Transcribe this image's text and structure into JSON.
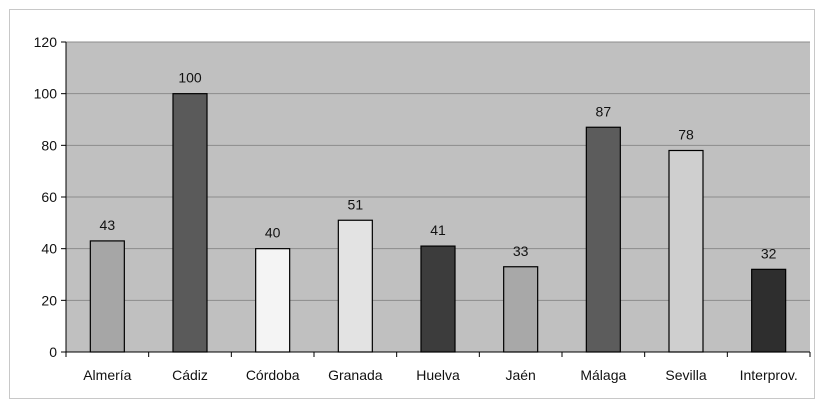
{
  "chart_data": {
    "type": "bar",
    "categories": [
      "Almería",
      "Cádiz",
      "Córdoba",
      "Granada",
      "Huelva",
      "Jaén",
      "Málaga",
      "Sevilla",
      "Interprov."
    ],
    "values": [
      43,
      100,
      40,
      51,
      41,
      33,
      87,
      78,
      32
    ],
    "bar_colors": [
      "#a6a6a6",
      "#5a5a5a",
      "#f4f4f4",
      "#e3e3e3",
      "#3c3c3c",
      "#a8a8a8",
      "#5c5c5c",
      "#cfcfcf",
      "#2e2e2e"
    ],
    "title": "",
    "xlabel": "",
    "ylabel": "",
    "ylim": [
      0,
      120
    ],
    "yticks": [
      0,
      20,
      40,
      60,
      80,
      100,
      120
    ],
    "grid": true,
    "plot_background": "#c0c0c0",
    "grid_color": "#8c8c8c"
  }
}
